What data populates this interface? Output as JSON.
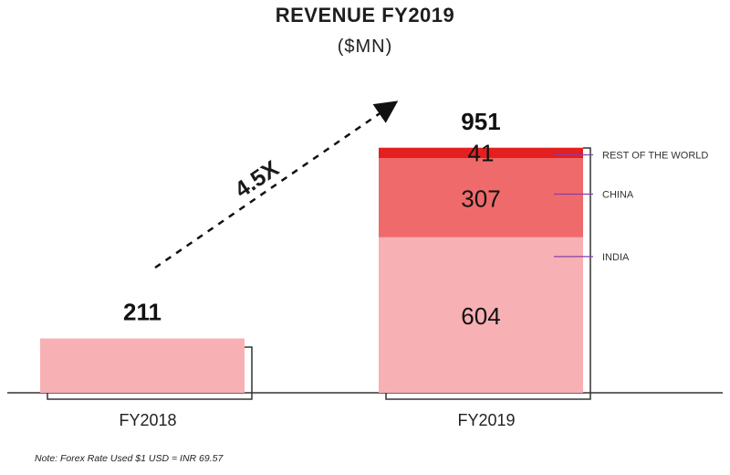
{
  "title": "REVENUE FY2019",
  "subtitle": "($MN)",
  "note": "Note: Forex Rate Used $1 USD = INR 69.57",
  "growth_label": "4.5X",
  "colors": {
    "india": "#f7b0b4",
    "china": "#ef6b6b",
    "rest_of_world": "#e41f1f",
    "bracket": "#333333",
    "leader": "#8a3fa8"
  },
  "chart_data": {
    "type": "bar",
    "stacked": true,
    "categories": [
      "FY2018",
      "FY2019"
    ],
    "totals": [
      211,
      951
    ],
    "series": [
      {
        "name": "INDIA",
        "values": [
          211,
          604
        ]
      },
      {
        "name": "CHINA",
        "values": [
          0,
          307
        ]
      },
      {
        "name": "REST OF THE WORLD",
        "values": [
          0,
          41
        ]
      }
    ],
    "segment_labels": [
      "604",
      "307",
      "41"
    ],
    "total_labels": [
      "211",
      "951"
    ],
    "legend": [
      "REST OF THE WORLD",
      "CHINA",
      "INDIA"
    ],
    "legend_placement": "right",
    "grid": false
  }
}
